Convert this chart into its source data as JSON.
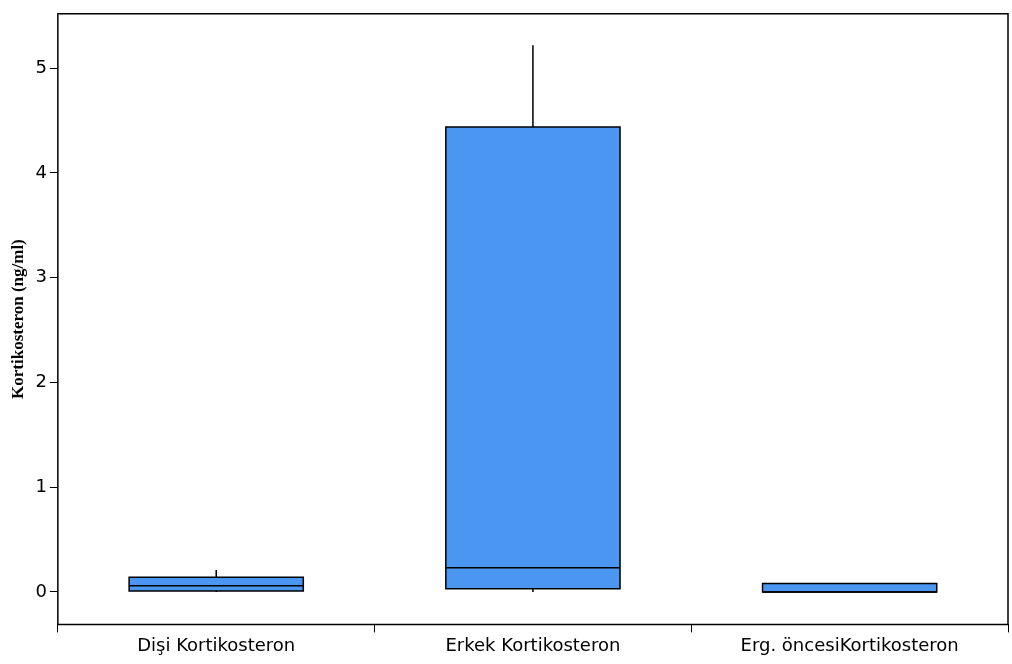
{
  "chart_data": {
    "type": "box",
    "ylabel": "Kortikosteron (ng/ml)",
    "categories": [
      "Dişi Kortikosteron",
      "Erkek Kortikosteron",
      "Erg. öncesiKortikosteron"
    ],
    "color": "#4a96f0",
    "boxes": [
      {
        "low": 0,
        "q1": 0.01,
        "median": 0.06,
        "q3": 0.14,
        "high": 0.21
      },
      {
        "low": 0,
        "q1": 0.03,
        "median": 0.23,
        "q3": 4.44,
        "high": 5.22
      },
      {
        "low": 0,
        "q1": 0,
        "median": 0,
        "q3": 0.08,
        "high": 0.08
      }
    ],
    "ylim": [
      -0.31,
      5.52
    ],
    "yticks": [
      0,
      1,
      2,
      3,
      4,
      5
    ],
    "grid": false,
    "legend": false
  }
}
